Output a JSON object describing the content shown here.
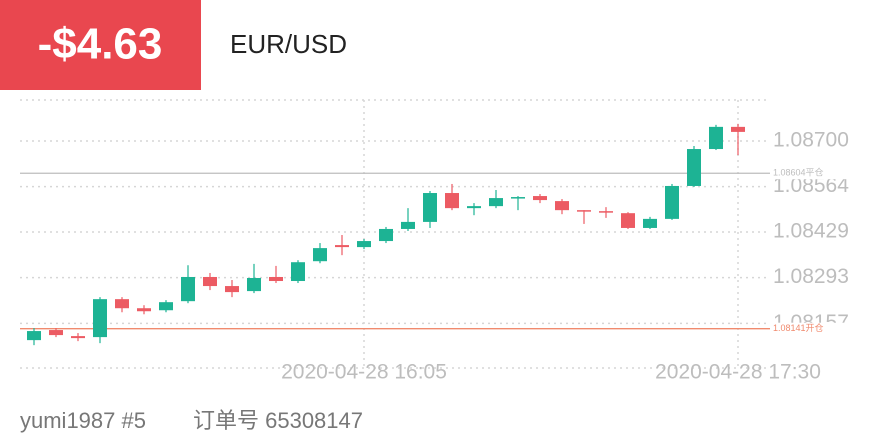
{
  "header": {
    "pnl": "-$4.63",
    "symbol": "EUR/USD"
  },
  "footer": {
    "user": "yumi1987 #5",
    "order": "订单号 65308147"
  },
  "chart_data": {
    "type": "candlestick",
    "categories": [
      null,
      null,
      null,
      null,
      null,
      null,
      null,
      null,
      null,
      null,
      null,
      null,
      null,
      null,
      null,
      "2020-04-28 16:05",
      null,
      null,
      null,
      null,
      null,
      null,
      null,
      null,
      null,
      null,
      null,
      null,
      null,
      null,
      null,
      null,
      "2020-04-28 17:30"
    ],
    "open": [
      1.08107,
      1.08137,
      1.08119,
      1.08116,
      1.08229,
      1.08202,
      1.08196,
      1.08223,
      1.08295,
      1.08268,
      1.08253,
      1.08295,
      1.08283,
      1.08342,
      1.0839,
      1.08384,
      1.08402,
      1.08438,
      1.08459,
      1.08545,
      1.085,
      1.08506,
      1.0853,
      1.08536,
      1.08521,
      1.08494,
      1.08491,
      1.08485,
      1.08441,
      1.08468,
      1.08566,
      1.08676,
      1.08742
    ],
    "high": [
      1.08143,
      1.08143,
      1.08128,
      1.08235,
      1.08235,
      1.08211,
      1.08226,
      1.0833,
      1.08307,
      1.08286,
      1.08334,
      1.08328,
      1.08345,
      1.08396,
      1.0842,
      1.08408,
      1.08444,
      1.085,
      1.08551,
      1.08572,
      1.08515,
      1.08554,
      1.08536,
      1.08542,
      1.08527,
      1.08494,
      1.08503,
      1.08488,
      1.08474,
      1.08572,
      1.08685,
      1.08748,
      1.08751
    ],
    "low": [
      1.08092,
      1.08116,
      1.08104,
      1.08098,
      1.0819,
      1.08184,
      1.0819,
      1.08217,
      1.08256,
      1.08235,
      1.08247,
      1.08277,
      1.08277,
      1.08336,
      1.0836,
      1.08378,
      1.08396,
      1.08432,
      1.08441,
      1.08494,
      1.08479,
      1.085,
      1.08494,
      1.08515,
      1.08482,
      1.08453,
      1.08471,
      1.08438,
      1.08438,
      1.08465,
      1.08563,
      1.08673,
      1.08658
    ],
    "close": [
      1.08134,
      1.08122,
      1.08113,
      1.08229,
      1.08202,
      1.08193,
      1.0822,
      1.08295,
      1.08268,
      1.0825,
      1.08292,
      1.08283,
      1.08339,
      1.08381,
      1.08384,
      1.08402,
      1.08438,
      1.08459,
      1.08545,
      1.085,
      1.08506,
      1.0853,
      1.08533,
      1.08524,
      1.08494,
      1.08491,
      1.08488,
      1.08441,
      1.08468,
      1.08566,
      1.08676,
      1.08742,
      1.08727
    ],
    "up_color": "#1db394",
    "down_color": "#ec5b63",
    "ylim": [
      1.08024,
      1.08822
    ],
    "yticks": [
      1.08157,
      1.08293,
      1.08429,
      1.08564,
      {
        "value": 1.087,
        "label": "1.08700"
      }
    ],
    "grid": true,
    "reference_lines": [
      {
        "value": 1.08604,
        "label": "1.08604平仓",
        "color": "#bdbdbd"
      },
      {
        "value": 1.08141,
        "label": "1.08141开仓",
        "color": "#f08a6e"
      }
    ]
  }
}
